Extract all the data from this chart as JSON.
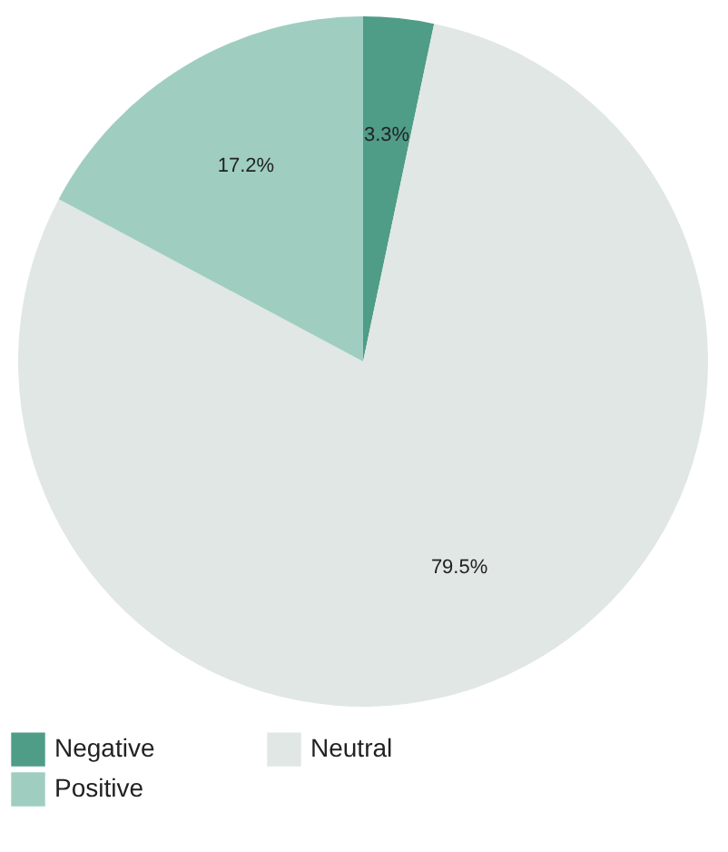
{
  "chart_data": {
    "type": "pie",
    "categories": [
      "Negative",
      "Neutral",
      "Positive"
    ],
    "values": [
      3.3,
      79.5,
      17.2
    ],
    "colors": [
      "#4f9c87",
      "#e0e7e4",
      "#9fcec0"
    ],
    "value_labels": [
      "3.3%",
      "79.5%",
      "17.2%"
    ],
    "legend": "bottom"
  }
}
